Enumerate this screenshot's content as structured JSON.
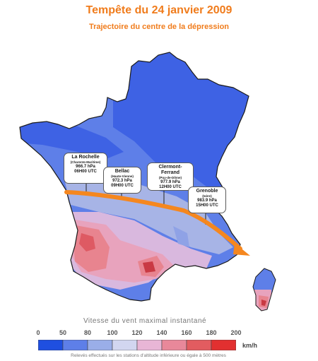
{
  "title": "Tempête du 24 janvier 2009",
  "subtitle": "Trajectoire du centre de la dépression",
  "stations": [
    {
      "city": "La Rochelle",
      "dept": "(Charente-Maritime)",
      "pressure": "966.7 hPa",
      "time": "06H00 UTC"
    },
    {
      "city": "Bellac",
      "dept": "(Haute-Vienne)",
      "pressure": "972.3 hPa",
      "time": "09H00 UTC"
    },
    {
      "city": "Clermont-Ferrand",
      "dept": "(Puy-de-Dôme)",
      "pressure": "977.9 hPa",
      "time": "12H00 UTC"
    },
    {
      "city": "Grenoble",
      "dept": "(Isère)",
      "pressure": "983.9 hPa",
      "time": "15H00 UTC"
    }
  ],
  "legend": {
    "title": "Vitesse du vent maximal instantané",
    "unit": "km/h",
    "ticks": [
      "0",
      "50",
      "80",
      "100",
      "120",
      "140",
      "160",
      "180",
      "200"
    ],
    "colors": [
      "#1f4fe0",
      "#5e7fe8",
      "#9aaee8",
      "#d2d6f0",
      "#e8b6d6",
      "#e8889a",
      "#e25c60",
      "#e23030"
    ],
    "note": "Relevés effectués sur les stations d'altitude inférieure ou égale à 500 mètres"
  },
  "colors": {
    "title": "#f07c1c",
    "track": "#f5871f",
    "land_base": "#3e62e4",
    "coast_outline": "#1a1a1a"
  }
}
